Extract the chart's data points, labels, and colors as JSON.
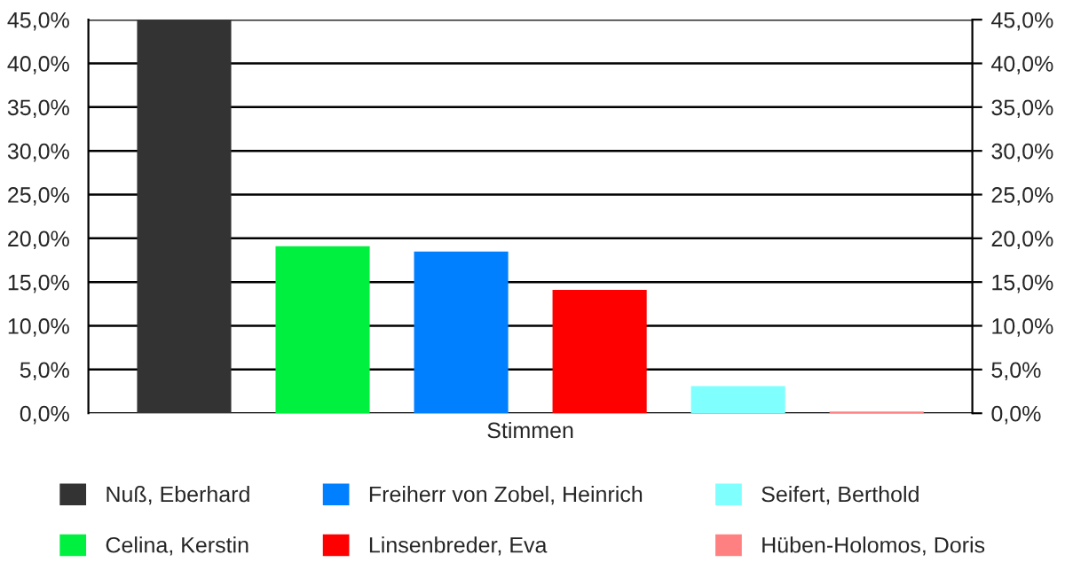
{
  "chart_data": {
    "type": "bar",
    "categories": [
      "Stimmen"
    ],
    "series": [
      {
        "name": "Nuß, Eberhard",
        "color": "#333333",
        "values": [
          45.0
        ]
      },
      {
        "name": "Celina, Kerstin",
        "color": "#00f040",
        "values": [
          19.1
        ]
      },
      {
        "name": "Freiherr von Zobel, Heinrich",
        "color": "#0080ff",
        "values": [
          18.5
        ]
      },
      {
        "name": "Linsenbreder, Eva",
        "color": "#ff0000",
        "values": [
          14.1
        ]
      },
      {
        "name": "Seifert, Berthold",
        "color": "#80ffff",
        "values": [
          3.1
        ]
      },
      {
        "name": "Hüben-Holomos, Doris",
        "color": "#ff8080",
        "values": [
          0.2
        ]
      }
    ],
    "ylim": [
      0,
      45
    ],
    "yticks": [
      {
        "value": 0,
        "label": "0,0%"
      },
      {
        "value": 5,
        "label": "5,0%"
      },
      {
        "value": 10,
        "label": "10,0%"
      },
      {
        "value": 15,
        "label": "15,0%"
      },
      {
        "value": 20,
        "label": "20,0%"
      },
      {
        "value": 25,
        "label": "25,0%"
      },
      {
        "value": 30,
        "label": "30,0%"
      },
      {
        "value": 35,
        "label": "35,0%"
      },
      {
        "value": 40,
        "label": "40,0%"
      },
      {
        "value": 45,
        "label": "45,0%"
      }
    ],
    "grid": "y",
    "legend": "bottom"
  }
}
